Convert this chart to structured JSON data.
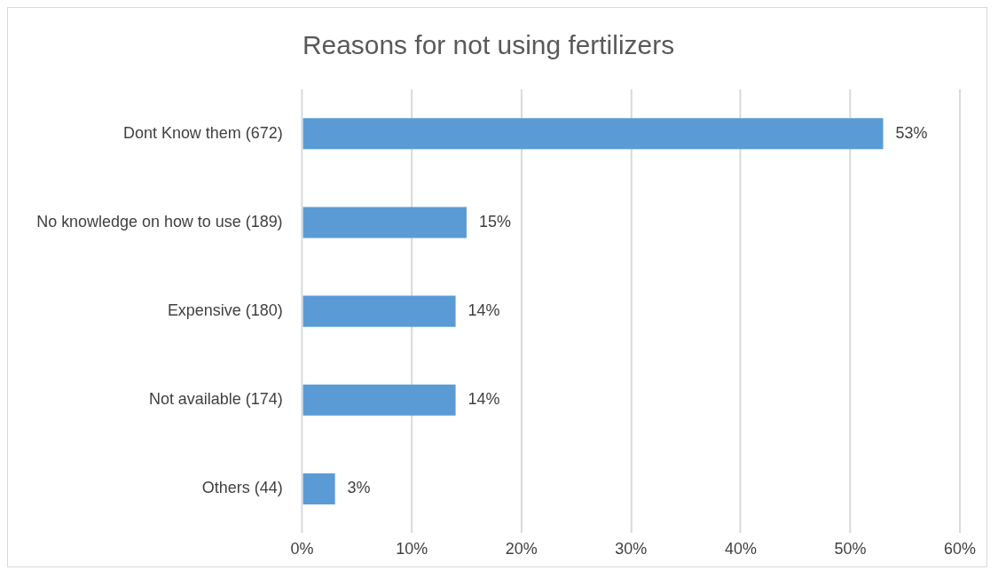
{
  "chart_data": {
    "type": "bar",
    "orientation": "horizontal",
    "title": "Reasons for not using fertilizers",
    "categories": [
      "Dont Know them (672)",
      "No knowledge on how to use (189)",
      "Expensive (180)",
      "Not available (174)",
      "Others (44)"
    ],
    "values": [
      53,
      15,
      14,
      14,
      3
    ],
    "value_labels": [
      "53%",
      "15%",
      "14%",
      "14%",
      "3%"
    ],
    "color": "#5b9bd5",
    "xlim": [
      0,
      60
    ],
    "xticks": [
      {
        "value": 0,
        "label": "0%"
      },
      {
        "value": 10,
        "label": "10%"
      },
      {
        "value": 20,
        "label": "20%"
      },
      {
        "value": 30,
        "label": "30%"
      },
      {
        "value": 40,
        "label": "40%"
      },
      {
        "value": 50,
        "label": "50%"
      },
      {
        "value": 60,
        "label": "60%"
      }
    ],
    "grid": "x",
    "legend": false
  }
}
